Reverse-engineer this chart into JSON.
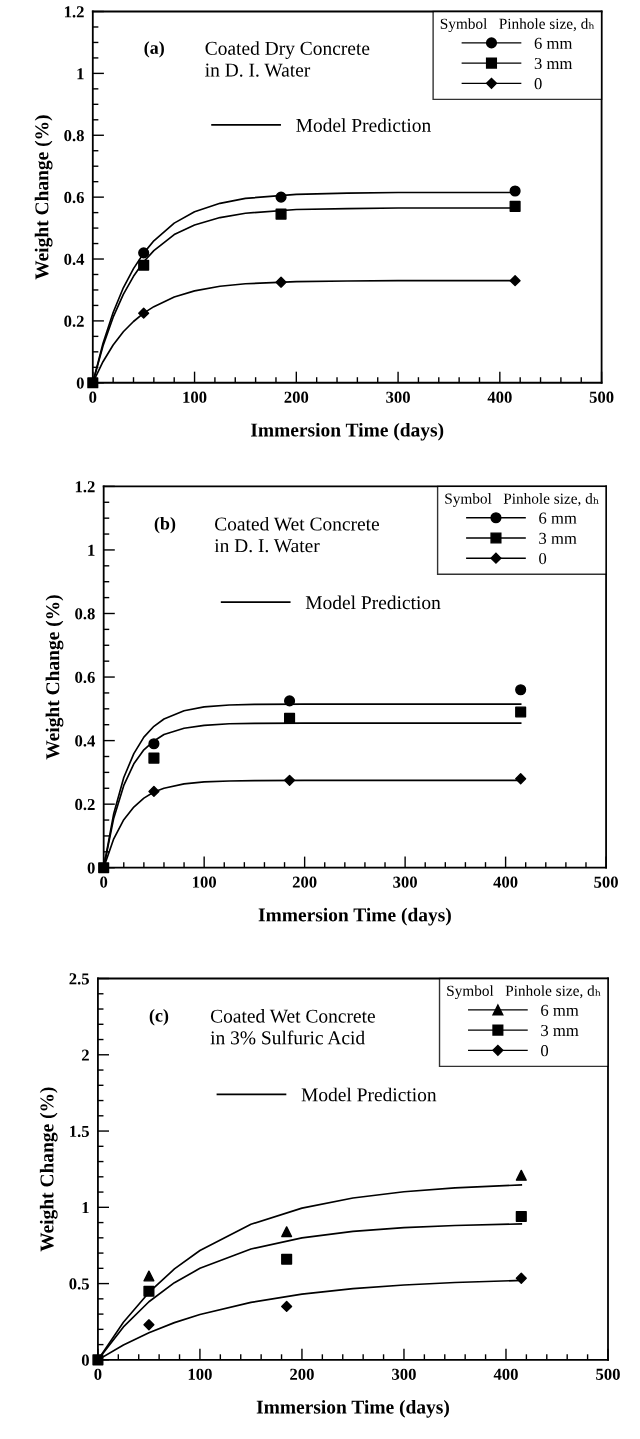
{
  "chart_data": [
    {
      "type": "scatter",
      "xlabel": "Immersion Time (days)",
      "ylabel": "Weight Change (%)",
      "xlim": [
        0,
        500
      ],
      "ylim": [
        0,
        1.2
      ],
      "xticks": [
        0,
        100,
        200,
        300,
        400,
        500
      ],
      "yticks": [
        0,
        0.2,
        0.4,
        0.6,
        0.8,
        1,
        1.2
      ],
      "legend": "top right",
      "legend_title": "Symbol   Pinhole size, dₕ",
      "grid": false,
      "annotations": [
        "(a)",
        "Coated Dry Concrete\nin D. I. Water"
      ],
      "series": [
        {
          "name": "6 mm",
          "marker": "circle",
          "color": "#000000",
          "x": [
            50,
            185,
            415
          ],
          "values": [
            0.42,
            0.6,
            0.62
          ]
        },
        {
          "name": "3 mm",
          "marker": "square",
          "color": "#000000",
          "x": [
            0,
            50,
            185,
            415
          ],
          "values": [
            0,
            0.38,
            0.545,
            0.57
          ]
        },
        {
          "name": "0",
          "marker": "diamond",
          "color": "#000000",
          "x": [
            50,
            185,
            415
          ],
          "values": [
            0.225,
            0.325,
            0.33
          ]
        },
        {
          "name": "Model Prediction",
          "type": "line",
          "line_style": "solid",
          "color": "#000000",
          "x": [
            0,
            10,
            20,
            30,
            40,
            50,
            60,
            80,
            100,
            125,
            150,
            200,
            250,
            300,
            415
          ],
          "values": [
            0,
            0.127,
            0.227,
            0.307,
            0.369,
            0.419,
            0.459,
            0.516,
            0.553,
            0.58,
            0.596,
            0.609,
            0.613,
            0.615,
            0.615
          ]
        },
        {
          "type": "line",
          "line_style": "solid",
          "color": "#000000",
          "x": [
            0,
            10,
            20,
            30,
            40,
            50,
            60,
            80,
            100,
            125,
            150,
            200,
            250,
            300,
            415
          ],
          "values": [
            0,
            0.119,
            0.212,
            0.286,
            0.344,
            0.391,
            0.427,
            0.479,
            0.51,
            0.534,
            0.548,
            0.56,
            0.563,
            0.565,
            0.565
          ]
        },
        {
          "type": "line",
          "line_style": "solid",
          "color": "#000000",
          "x": [
            0,
            10,
            20,
            30,
            40,
            50,
            60,
            80,
            100,
            125,
            150,
            200,
            250,
            300,
            415
          ],
          "values": [
            0,
            0.068,
            0.122,
            0.165,
            0.198,
            0.225,
            0.246,
            0.277,
            0.297,
            0.312,
            0.32,
            0.327,
            0.329,
            0.33,
            0.33
          ]
        }
      ]
    },
    {
      "type": "scatter",
      "xlabel": "Immersion Time (days)",
      "ylabel": "Weight Change (%)",
      "xlim": [
        0,
        500
      ],
      "ylim": [
        0,
        1.2
      ],
      "xticks": [
        0,
        100,
        200,
        300,
        400,
        500
      ],
      "yticks": [
        0,
        0.2,
        0.4,
        0.6,
        0.8,
        1,
        1.2
      ],
      "legend": "top right",
      "legend_title": "Symbol   Pinhole size, dₕ",
      "grid": false,
      "annotations": [
        "(b)",
        "Coated Wet Concrete\nin D. I. Water"
      ],
      "series": [
        {
          "name": "6 mm",
          "marker": "circle",
          "color": "#000000",
          "x": [
            50,
            185,
            415
          ],
          "values": [
            0.39,
            0.525,
            0.56
          ]
        },
        {
          "name": "3 mm",
          "marker": "square",
          "color": "#000000",
          "x": [
            0,
            50,
            185,
            415
          ],
          "values": [
            0,
            0.345,
            0.47,
            0.49
          ]
        },
        {
          "name": "0",
          "marker": "diamond",
          "color": "#000000",
          "x": [
            50,
            185,
            415
          ],
          "values": [
            0.24,
            0.275,
            0.28
          ]
        },
        {
          "name": "Model Prediction",
          "type": "line",
          "line_style": "solid",
          "color": "#000000",
          "x": [
            0,
            10,
            20,
            30,
            40,
            50,
            60,
            80,
            100,
            125,
            150,
            200,
            415
          ],
          "values": [
            0,
            0.17,
            0.284,
            0.359,
            0.411,
            0.445,
            0.468,
            0.494,
            0.506,
            0.512,
            0.514,
            0.515,
            0.515
          ]
        },
        {
          "type": "line",
          "line_style": "solid",
          "color": "#000000",
          "x": [
            0,
            10,
            20,
            30,
            40,
            50,
            60,
            80,
            100,
            125,
            150,
            200,
            415
          ],
          "values": [
            0,
            0.156,
            0.259,
            0.327,
            0.371,
            0.399,
            0.419,
            0.439,
            0.448,
            0.453,
            0.454,
            0.455,
            0.455
          ]
        },
        {
          "type": "line",
          "line_style": "solid",
          "color": "#000000",
          "x": [
            0,
            10,
            20,
            30,
            40,
            50,
            60,
            80,
            100,
            125,
            150,
            200,
            415
          ],
          "values": [
            0,
            0.091,
            0.151,
            0.191,
            0.219,
            0.238,
            0.25,
            0.264,
            0.27,
            0.273,
            0.274,
            0.275,
            0.275
          ]
        }
      ]
    },
    {
      "type": "scatter",
      "xlabel": "Immersion Time (days)",
      "ylabel": "Weight Change (%)",
      "xlim": [
        0,
        500
      ],
      "ylim": [
        0,
        2.5
      ],
      "xticks": [
        0,
        100,
        200,
        300,
        400,
        500
      ],
      "yticks": [
        0,
        0.5,
        1,
        1.5,
        2,
        2.5
      ],
      "legend": "top right",
      "legend_title": "Symbol   Pinhole size, dₕ",
      "grid": false,
      "annotations": [
        "(c)",
        "Coated Wet Concrete\nin 3% Sulfuric Acid"
      ],
      "series": [
        {
          "name": "6 mm",
          "marker": "triangle",
          "color": "#000000",
          "x": [
            50,
            185,
            415
          ],
          "values": [
            0.55,
            0.84,
            1.21
          ]
        },
        {
          "name": "3 mm",
          "marker": "square",
          "color": "#000000",
          "x": [
            0,
            50,
            185,
            415
          ],
          "values": [
            0,
            0.45,
            0.66,
            0.94
          ]
        },
        {
          "name": "0",
          "marker": "diamond",
          "color": "#000000",
          "x": [
            50,
            185,
            415
          ],
          "values": [
            0.23,
            0.35,
            0.535
          ]
        },
        {
          "name": "Model Prediction",
          "type": "line",
          "line_style": "solid",
          "color": "#000000",
          "x": [
            0,
            25,
            50,
            75,
            100,
            150,
            200,
            250,
            300,
            350,
            415
          ],
          "values": [
            0,
            0.247,
            0.442,
            0.596,
            0.717,
            0.889,
            0.995,
            1.061,
            1.102,
            1.128,
            1.147
          ]
        },
        {
          "type": "line",
          "line_style": "solid",
          "color": "#000000",
          "x": [
            0,
            25,
            50,
            75,
            100,
            150,
            200,
            250,
            300,
            350,
            415
          ],
          "values": [
            0,
            0.216,
            0.381,
            0.506,
            0.6,
            0.727,
            0.8,
            0.842,
            0.867,
            0.881,
            0.891
          ]
        },
        {
          "type": "line",
          "line_style": "solid",
          "color": "#000000",
          "x": [
            0,
            25,
            50,
            75,
            100,
            150,
            200,
            250,
            300,
            350,
            415
          ],
          "values": [
            0,
            0.098,
            0.178,
            0.244,
            0.297,
            0.377,
            0.431,
            0.467,
            0.491,
            0.507,
            0.521
          ]
        }
      ]
    }
  ]
}
